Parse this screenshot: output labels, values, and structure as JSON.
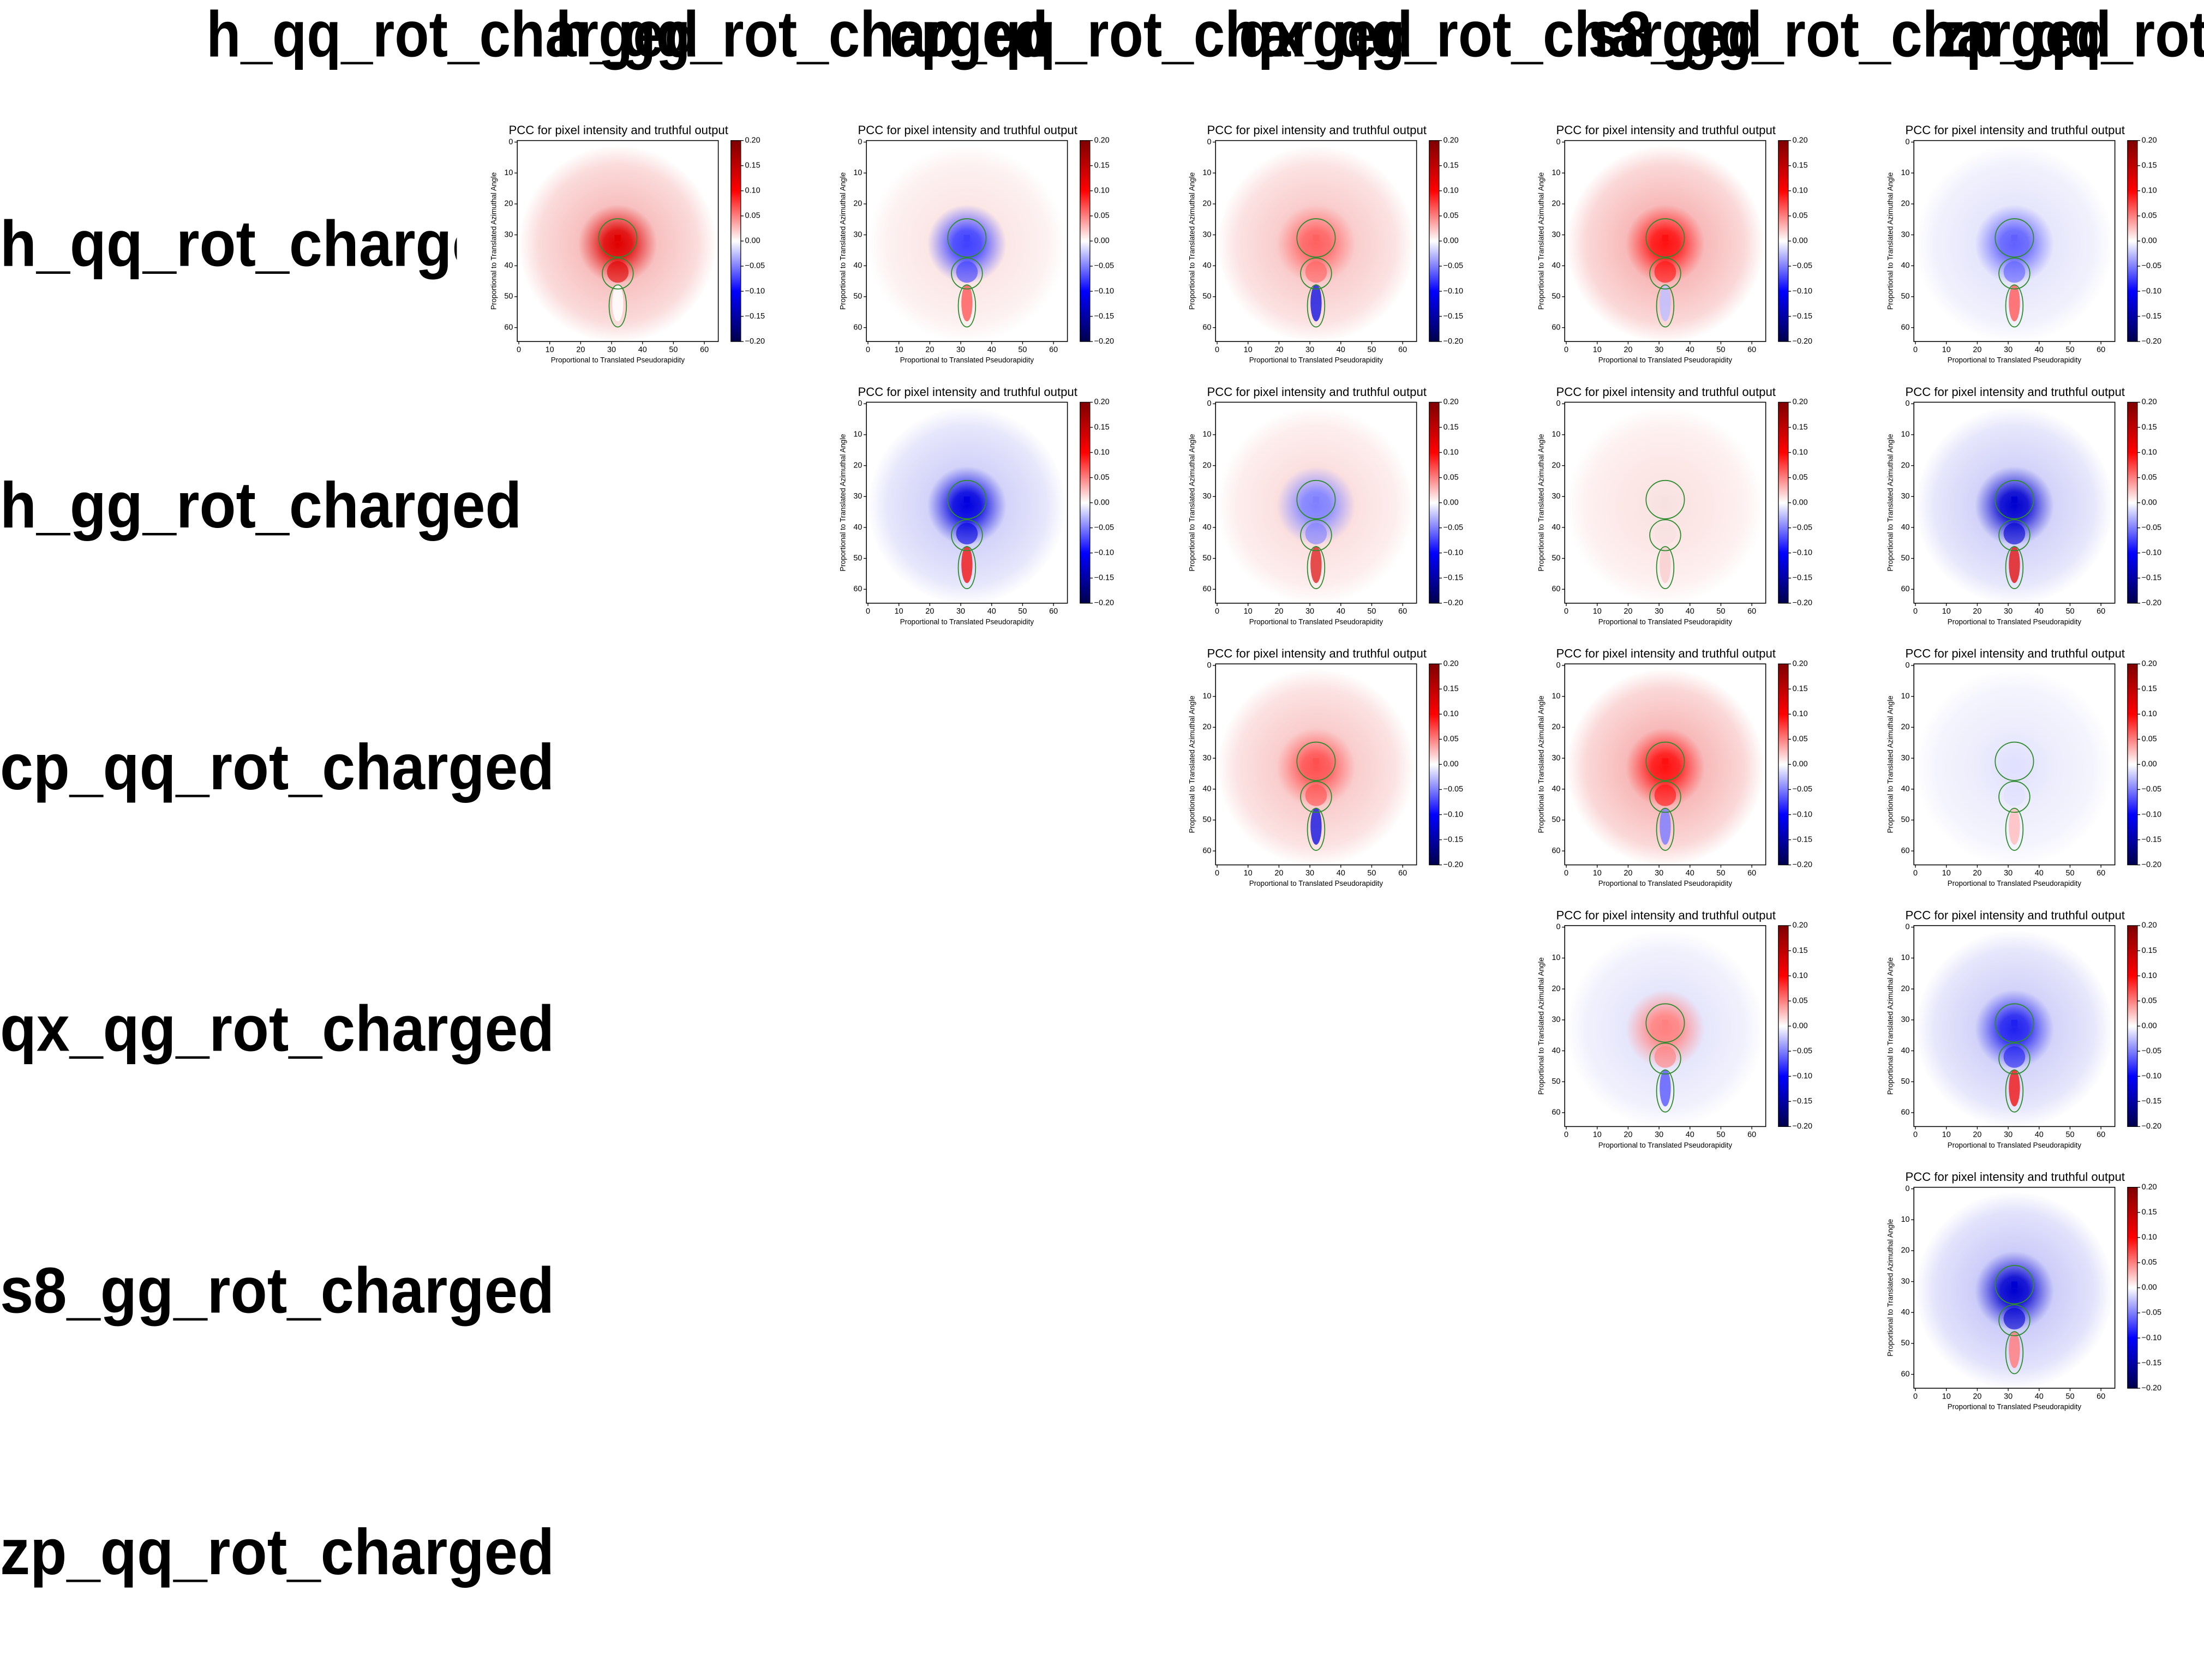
{
  "column_headers": [
    "h_qq_rot_charged",
    "h_gg_rot_charged",
    "cp_qq_rot_charged",
    "qx_qg_rot_charged",
    "s8_gg_rot_charged",
    "zp_qq_rot_charged"
  ],
  "row_headers": [
    "h_qq_rot_charged",
    "h_gg_rot_charged",
    "cp_qq_rot_charged",
    "qx_qg_rot_charged",
    "s8_gg_rot_charged",
    "zp_qq_rot_charged"
  ],
  "panel": {
    "type": "heatmap",
    "title": "PCC for pixel intensity and truthful output",
    "x_label": "Proportional to Translated Pseudorapidity",
    "y_label": "Proportional to Translated Azimuthal Angle",
    "xlim": [
      -0.5,
      64.5
    ],
    "ylim": [
      64.5,
      -0.5
    ],
    "xticks": [
      0,
      10,
      20,
      30,
      40,
      50,
      60
    ],
    "yticks": [
      0,
      10,
      20,
      30,
      40,
      50,
      60
    ],
    "colorbar": {
      "lim": [
        -0.2,
        0.2
      ],
      "colors": [
        "#00004c",
        "#0000ff",
        "#ffffff",
        "#ff0000",
        "#7f0000"
      ],
      "ticks": [
        {
          "value": 0.2,
          "label": "0.20"
        },
        {
          "value": 0.15,
          "label": "0.15"
        },
        {
          "value": 0.1,
          "label": "0.10"
        },
        {
          "value": 0.05,
          "label": "0.05"
        },
        {
          "value": 0,
          "label": "0.00"
        },
        {
          "value": -0.05,
          "label": "−0.05"
        },
        {
          "value": -0.1,
          "label": "−0.10"
        },
        {
          "value": -0.15,
          "label": "−0.15"
        },
        {
          "value": -0.2,
          "label": "−0.20"
        }
      ]
    }
  },
  "panels": [
    {
      "row": 0,
      "col": 0,
      "colors": [
        "#f6b0b0",
        "#e00000",
        "#ffffff"
      ]
    },
    {
      "row": 0,
      "col": 1,
      "colors": [
        "#fbe0e0",
        "#4040ff",
        "#ff6060"
      ]
    },
    {
      "row": 0,
      "col": 2,
      "colors": [
        "#f8c0c0",
        "#ff6060",
        "#2020e0"
      ]
    },
    {
      "row": 0,
      "col": 3,
      "colors": [
        "#f6a8a8",
        "#ff1010",
        "#c0c0ff"
      ]
    },
    {
      "row": 0,
      "col": 4,
      "colors": [
        "#e0e0fb",
        "#6060ff",
        "#ff6060"
      ]
    },
    {
      "row": 1,
      "col": 1,
      "colors": [
        "#c8c8f8",
        "#0000e0",
        "#f02020"
      ]
    },
    {
      "row": 1,
      "col": 2,
      "colors": [
        "#fbd8d8",
        "#8080ff",
        "#e03030"
      ]
    },
    {
      "row": 1,
      "col": 3,
      "colors": [
        "#fce0e0",
        "#f8e0e0",
        "#f8d0d0"
      ]
    },
    {
      "row": 1,
      "col": 4,
      "colors": [
        "#c8c8f8",
        "#0000d0",
        "#e02020"
      ]
    },
    {
      "row": 2,
      "col": 2,
      "colors": [
        "#f8c0c0",
        "#ff5050",
        "#2020e0"
      ]
    },
    {
      "row": 2,
      "col": 3,
      "colors": [
        "#f6a8a8",
        "#ff1010",
        "#8080ff"
      ]
    },
    {
      "row": 2,
      "col": 4,
      "colors": [
        "#e8e8fc",
        "#e0e0ff",
        "#ffc0c0"
      ]
    },
    {
      "row": 3,
      "col": 3,
      "colors": [
        "#e0e0fb",
        "#ff8080",
        "#6060ff"
      ]
    },
    {
      "row": 3,
      "col": 4,
      "colors": [
        "#c8c8f8",
        "#2020f0",
        "#f02020"
      ]
    },
    {
      "row": 4,
      "col": 4,
      "colors": [
        "#c0c0f8",
        "#0000d0",
        "#ff8080"
      ]
    }
  ]
}
